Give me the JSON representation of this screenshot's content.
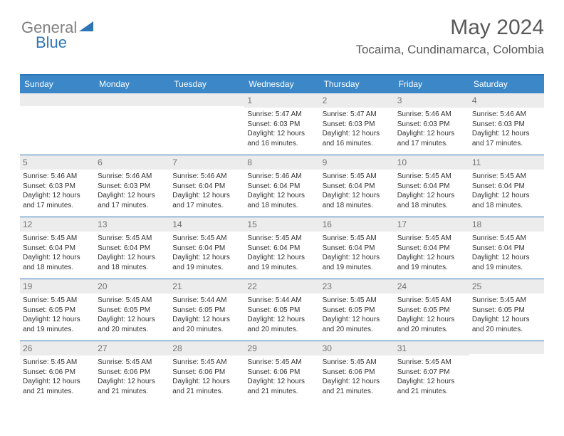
{
  "logo": {
    "gray": "General",
    "blue": "Blue"
  },
  "header": {
    "month_title": "May 2024",
    "location": "Tocaima, Cundinamarca, Colombia"
  },
  "weekdays": [
    "Sunday",
    "Monday",
    "Tuesday",
    "Wednesday",
    "Thursday",
    "Friday",
    "Saturday"
  ],
  "colors": {
    "header_bar": "#3b87c8",
    "border": "#2e75b6",
    "daynum_bg": "#ececec",
    "text": "#333333",
    "muted": "#737373"
  },
  "weeks": [
    [
      {
        "num": "",
        "sunrise": "",
        "sunset": "",
        "daylight": ""
      },
      {
        "num": "",
        "sunrise": "",
        "sunset": "",
        "daylight": ""
      },
      {
        "num": "",
        "sunrise": "",
        "sunset": "",
        "daylight": ""
      },
      {
        "num": "1",
        "sunrise": "Sunrise: 5:47 AM",
        "sunset": "Sunset: 6:03 PM",
        "daylight": "Daylight: 12 hours and 16 minutes."
      },
      {
        "num": "2",
        "sunrise": "Sunrise: 5:47 AM",
        "sunset": "Sunset: 6:03 PM",
        "daylight": "Daylight: 12 hours and 16 minutes."
      },
      {
        "num": "3",
        "sunrise": "Sunrise: 5:46 AM",
        "sunset": "Sunset: 6:03 PM",
        "daylight": "Daylight: 12 hours and 17 minutes."
      },
      {
        "num": "4",
        "sunrise": "Sunrise: 5:46 AM",
        "sunset": "Sunset: 6:03 PM",
        "daylight": "Daylight: 12 hours and 17 minutes."
      }
    ],
    [
      {
        "num": "5",
        "sunrise": "Sunrise: 5:46 AM",
        "sunset": "Sunset: 6:03 PM",
        "daylight": "Daylight: 12 hours and 17 minutes."
      },
      {
        "num": "6",
        "sunrise": "Sunrise: 5:46 AM",
        "sunset": "Sunset: 6:03 PM",
        "daylight": "Daylight: 12 hours and 17 minutes."
      },
      {
        "num": "7",
        "sunrise": "Sunrise: 5:46 AM",
        "sunset": "Sunset: 6:04 PM",
        "daylight": "Daylight: 12 hours and 17 minutes."
      },
      {
        "num": "8",
        "sunrise": "Sunrise: 5:46 AM",
        "sunset": "Sunset: 6:04 PM",
        "daylight": "Daylight: 12 hours and 18 minutes."
      },
      {
        "num": "9",
        "sunrise": "Sunrise: 5:45 AM",
        "sunset": "Sunset: 6:04 PM",
        "daylight": "Daylight: 12 hours and 18 minutes."
      },
      {
        "num": "10",
        "sunrise": "Sunrise: 5:45 AM",
        "sunset": "Sunset: 6:04 PM",
        "daylight": "Daylight: 12 hours and 18 minutes."
      },
      {
        "num": "11",
        "sunrise": "Sunrise: 5:45 AM",
        "sunset": "Sunset: 6:04 PM",
        "daylight": "Daylight: 12 hours and 18 minutes."
      }
    ],
    [
      {
        "num": "12",
        "sunrise": "Sunrise: 5:45 AM",
        "sunset": "Sunset: 6:04 PM",
        "daylight": "Daylight: 12 hours and 18 minutes."
      },
      {
        "num": "13",
        "sunrise": "Sunrise: 5:45 AM",
        "sunset": "Sunset: 6:04 PM",
        "daylight": "Daylight: 12 hours and 18 minutes."
      },
      {
        "num": "14",
        "sunrise": "Sunrise: 5:45 AM",
        "sunset": "Sunset: 6:04 PM",
        "daylight": "Daylight: 12 hours and 19 minutes."
      },
      {
        "num": "15",
        "sunrise": "Sunrise: 5:45 AM",
        "sunset": "Sunset: 6:04 PM",
        "daylight": "Daylight: 12 hours and 19 minutes."
      },
      {
        "num": "16",
        "sunrise": "Sunrise: 5:45 AM",
        "sunset": "Sunset: 6:04 PM",
        "daylight": "Daylight: 12 hours and 19 minutes."
      },
      {
        "num": "17",
        "sunrise": "Sunrise: 5:45 AM",
        "sunset": "Sunset: 6:04 PM",
        "daylight": "Daylight: 12 hours and 19 minutes."
      },
      {
        "num": "18",
        "sunrise": "Sunrise: 5:45 AM",
        "sunset": "Sunset: 6:04 PM",
        "daylight": "Daylight: 12 hours and 19 minutes."
      }
    ],
    [
      {
        "num": "19",
        "sunrise": "Sunrise: 5:45 AM",
        "sunset": "Sunset: 6:05 PM",
        "daylight": "Daylight: 12 hours and 19 minutes."
      },
      {
        "num": "20",
        "sunrise": "Sunrise: 5:45 AM",
        "sunset": "Sunset: 6:05 PM",
        "daylight": "Daylight: 12 hours and 20 minutes."
      },
      {
        "num": "21",
        "sunrise": "Sunrise: 5:44 AM",
        "sunset": "Sunset: 6:05 PM",
        "daylight": "Daylight: 12 hours and 20 minutes."
      },
      {
        "num": "22",
        "sunrise": "Sunrise: 5:44 AM",
        "sunset": "Sunset: 6:05 PM",
        "daylight": "Daylight: 12 hours and 20 minutes."
      },
      {
        "num": "23",
        "sunrise": "Sunrise: 5:45 AM",
        "sunset": "Sunset: 6:05 PM",
        "daylight": "Daylight: 12 hours and 20 minutes."
      },
      {
        "num": "24",
        "sunrise": "Sunrise: 5:45 AM",
        "sunset": "Sunset: 6:05 PM",
        "daylight": "Daylight: 12 hours and 20 minutes."
      },
      {
        "num": "25",
        "sunrise": "Sunrise: 5:45 AM",
        "sunset": "Sunset: 6:05 PM",
        "daylight": "Daylight: 12 hours and 20 minutes."
      }
    ],
    [
      {
        "num": "26",
        "sunrise": "Sunrise: 5:45 AM",
        "sunset": "Sunset: 6:06 PM",
        "daylight": "Daylight: 12 hours and 21 minutes."
      },
      {
        "num": "27",
        "sunrise": "Sunrise: 5:45 AM",
        "sunset": "Sunset: 6:06 PM",
        "daylight": "Daylight: 12 hours and 21 minutes."
      },
      {
        "num": "28",
        "sunrise": "Sunrise: 5:45 AM",
        "sunset": "Sunset: 6:06 PM",
        "daylight": "Daylight: 12 hours and 21 minutes."
      },
      {
        "num": "29",
        "sunrise": "Sunrise: 5:45 AM",
        "sunset": "Sunset: 6:06 PM",
        "daylight": "Daylight: 12 hours and 21 minutes."
      },
      {
        "num": "30",
        "sunrise": "Sunrise: 5:45 AM",
        "sunset": "Sunset: 6:06 PM",
        "daylight": "Daylight: 12 hours and 21 minutes."
      },
      {
        "num": "31",
        "sunrise": "Sunrise: 5:45 AM",
        "sunset": "Sunset: 6:07 PM",
        "daylight": "Daylight: 12 hours and 21 minutes."
      },
      {
        "num": "",
        "sunrise": "",
        "sunset": "",
        "daylight": ""
      }
    ]
  ]
}
